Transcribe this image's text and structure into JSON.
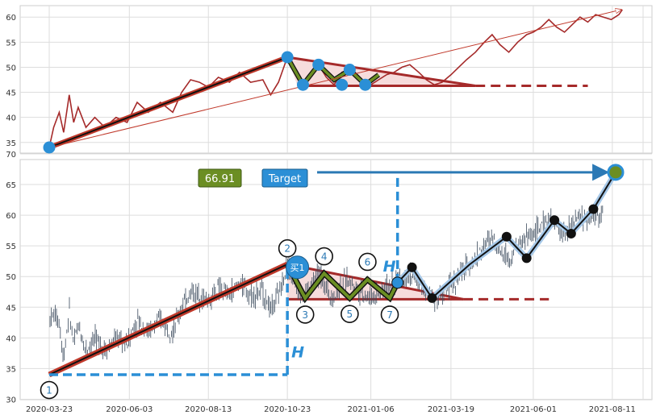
{
  "chart_data": [
    {
      "panel": "overview",
      "type": "line",
      "ylim": [
        32,
        63
      ],
      "y_ticks": [
        35,
        40,
        45,
        50,
        55,
        60
      ],
      "grid": true,
      "series": [
        {
          "kind": "price",
          "color": "#a52a2a",
          "points": [
            [
              "2020-03-23",
              34
            ],
            [
              "2020-03-27",
              38
            ],
            [
              "2020-04-01",
              41
            ],
            [
              "2020-04-05",
              37
            ],
            [
              "2020-04-10",
              44.5
            ],
            [
              "2020-04-14",
              39
            ],
            [
              "2020-04-18",
              42
            ],
            [
              "2020-04-25",
              38
            ],
            [
              "2020-05-03",
              40
            ],
            [
              "2020-05-12",
              38
            ],
            [
              "2020-05-22",
              40
            ],
            [
              "2020-06-01",
              39
            ],
            [
              "2020-06-10",
              43
            ],
            [
              "2020-06-20",
              41
            ],
            [
              "2020-07-01",
              43
            ],
            [
              "2020-07-12",
              41
            ],
            [
              "2020-07-20",
              45
            ],
            [
              "2020-07-28",
              47.5
            ],
            [
              "2020-08-05",
              47
            ],
            [
              "2020-08-13",
              46
            ],
            [
              "2020-08-22",
              48
            ],
            [
              "2020-09-01",
              47
            ],
            [
              "2020-09-10",
              49
            ],
            [
              "2020-09-20",
              47
            ],
            [
              "2020-10-01",
              47.5
            ],
            [
              "2020-10-08",
              44.5
            ],
            [
              "2020-10-15",
              47
            ],
            [
              "2020-10-23",
              52
            ],
            [
              "2020-10-30",
              49
            ],
            [
              "2020-11-06",
              46.5
            ],
            [
              "2020-11-13",
              48.5
            ],
            [
              "2020-11-20",
              50.5
            ],
            [
              "2020-11-27",
              48
            ],
            [
              "2020-12-04",
              46.5
            ],
            [
              "2020-12-11",
              49
            ],
            [
              "2020-12-18",
              49.5
            ],
            [
              "2020-12-25",
              48
            ],
            [
              "2021-01-01",
              47
            ],
            [
              "2021-01-06",
              46.5
            ],
            [
              "2021-01-13",
              47.5
            ],
            [
              "2021-01-20",
              48.5
            ],
            [
              "2021-01-27",
              49
            ],
            [
              "2021-02-03",
              50
            ],
            [
              "2021-02-10",
              50.5
            ],
            [
              "2021-02-18",
              49
            ],
            [
              "2021-02-25",
              47.5
            ],
            [
              "2021-03-04",
              46.5
            ],
            [
              "2021-03-11",
              47
            ],
            [
              "2021-03-19",
              48.5
            ],
            [
              "2021-03-26",
              50
            ],
            [
              "2021-04-02",
              51.5
            ],
            [
              "2021-04-10",
              53
            ],
            [
              "2021-04-18",
              55
            ],
            [
              "2021-04-25",
              56.5
            ],
            [
              "2021-05-02",
              54.5
            ],
            [
              "2021-05-10",
              53
            ],
            [
              "2021-05-18",
              55
            ],
            [
              "2021-05-26",
              56.5
            ],
            [
              "2021-06-01",
              57
            ],
            [
              "2021-06-08",
              58
            ],
            [
              "2021-06-15",
              59.5
            ],
            [
              "2021-06-22",
              58
            ],
            [
              "2021-06-29",
              57
            ],
            [
              "2021-07-06",
              58.5
            ],
            [
              "2021-07-13",
              60
            ],
            [
              "2021-07-20",
              59
            ],
            [
              "2021-07-27",
              60.5
            ],
            [
              "2021-08-03",
              60
            ],
            [
              "2021-08-10",
              59.5
            ],
            [
              "2021-08-17",
              60.5
            ],
            [
              "2021-08-20",
              61.5
            ]
          ]
        }
      ],
      "trend_line": [
        [
          "2020-03-23",
          34
        ],
        [
          "2020-10-23",
          52
        ]
      ],
      "wave": [
        [
          "2020-10-23",
          52
        ],
        [
          "2020-11-06",
          46.5
        ],
        [
          "2020-11-20",
          50.5
        ],
        [
          "2020-12-04",
          47.5
        ],
        [
          "2020-12-18",
          49.5
        ],
        [
          "2021-01-01",
          46.5
        ],
        [
          "2021-01-13",
          48.5
        ]
      ],
      "pivot_markers": [
        [
          "2020-03-23",
          34
        ],
        [
          "2020-10-23",
          52
        ],
        [
          "2020-11-06",
          46.5
        ],
        [
          "2020-11-20",
          50.5
        ],
        [
          "2020-12-11",
          46.5
        ],
        [
          "2020-12-18",
          49.5
        ],
        [
          "2021-01-01",
          46.5
        ]
      ],
      "triangle": {
        "apex_start": [
          "2020-10-23",
          52
        ],
        "apex_end": [
          "2021-04-10",
          46.3
        ],
        "base_start": [
          "2020-11-01",
          46.3
        ],
        "base_end": [
          "2021-04-10",
          46.3
        ]
      },
      "support_extension": [
        [
          "2021-04-10",
          46.3
        ],
        [
          "2021-07-20",
          46.3
        ]
      ],
      "long_arrow": [
        [
          "2020-03-23",
          34
        ],
        [
          "2021-08-22",
          61.5
        ]
      ]
    },
    {
      "panel": "detail",
      "type": "candlestick",
      "ylim": [
        30,
        70
      ],
      "y_ticks": [
        30,
        35,
        40,
        45,
        50,
        55,
        60,
        65,
        70
      ],
      "x_ticks": [
        "2020-03-23",
        "2020-06-03",
        "2020-08-13",
        "2020-10-23",
        "2021-01-06",
        "2021-03-19",
        "2021-06-01",
        "2021-08-11"
      ],
      "grid": true,
      "trend_line": [
        [
          "2020-03-23",
          34
        ],
        [
          "2020-10-23",
          52
        ]
      ],
      "wave": [
        [
          "2020-10-23",
          52
        ],
        [
          "2020-11-08",
          46.5
        ],
        [
          "2020-11-25",
          50.5
        ],
        [
          "2020-12-18",
          46.5
        ],
        [
          "2021-01-03",
          49.5
        ],
        [
          "2021-01-23",
          46.5
        ],
        [
          "2021-01-30",
          49
        ]
      ],
      "forecast_path": [
        [
          "2021-01-30",
          49
        ],
        [
          "2021-02-12",
          51.5
        ],
        [
          "2021-03-02",
          46.5
        ],
        [
          "2021-04-05",
          52
        ],
        [
          "2021-05-08",
          56.5
        ],
        [
          "2021-05-26",
          53
        ],
        [
          "2021-06-20",
          59.2
        ],
        [
          "2021-07-05",
          57
        ],
        [
          "2021-07-25",
          61
        ],
        [
          "2021-08-14",
          67
        ]
      ],
      "forecast_markers": [
        [
          "2021-02-12",
          51.5
        ],
        [
          "2021-03-02",
          46.5
        ],
        [
          "2021-05-08",
          56.5
        ],
        [
          "2021-05-26",
          53
        ],
        [
          "2021-06-20",
          59.2
        ],
        [
          "2021-07-05",
          57
        ],
        [
          "2021-07-25",
          61
        ]
      ],
      "triangle": {
        "apex_start": [
          "2020-10-23",
          52
        ],
        "apex_end": [
          "2021-03-30",
          46.3
        ],
        "base_start": [
          "2020-10-23",
          46.3
        ],
        "base_end": [
          "2021-03-30",
          46.3
        ]
      },
      "support_extension": [
        [
          "2021-03-30",
          46.3
        ],
        [
          "2021-06-15",
          46.3
        ]
      ],
      "height_H_left": {
        "x": "2020-10-23",
        "from": 34,
        "to": 52,
        "label": "H"
      },
      "height_H_right": {
        "x": "2021-01-30",
        "from": 49,
        "to": 67,
        "label": "H"
      },
      "target_line": {
        "from": [
          "2021-01-30",
          67
        ],
        "to": [
          "2021-08-14",
          67
        ]
      },
      "buy_marker": {
        "at": [
          "2020-11-01",
          51.5
        ],
        "label": "买1"
      },
      "target_marker": [
        "2021-08-14",
        67
      ],
      "breakout_marker": [
        "2021-01-30",
        49
      ],
      "point_labels": [
        {
          "label": "1",
          "at": [
            "2020-03-23",
            31.5
          ]
        },
        {
          "label": "2",
          "at": [
            "2020-10-23",
            54.6
          ]
        },
        {
          "label": "3",
          "at": [
            "2020-11-08",
            43.8
          ]
        },
        {
          "label": "4",
          "at": [
            "2020-11-25",
            53.3
          ]
        },
        {
          "label": "5",
          "at": [
            "2020-12-18",
            43.9
          ]
        },
        {
          "label": "6",
          "at": [
            "2021-01-03",
            52.4
          ]
        },
        {
          "label": "7",
          "at": [
            "2021-01-23",
            43.8
          ]
        }
      ],
      "value_badge": "66.91",
      "target_badge": "Target"
    }
  ]
}
